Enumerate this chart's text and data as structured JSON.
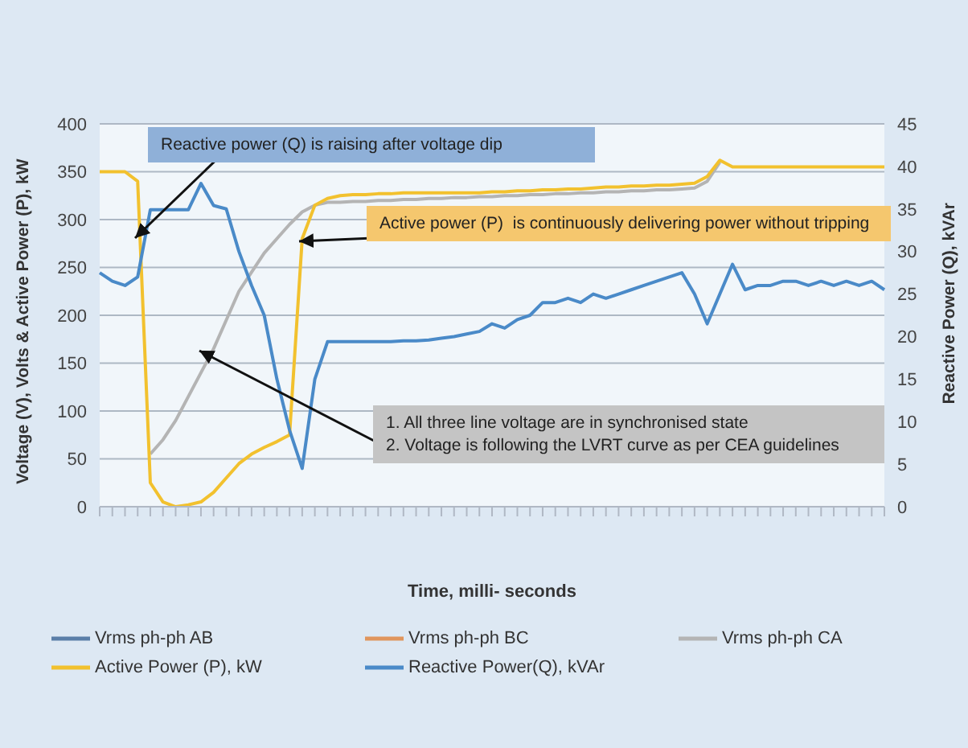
{
  "chart_data": {
    "type": "line",
    "xlabel": "Time, milli- seconds",
    "ylabel": "Voltage (V), Volts & Active Power (P), kW",
    "y2label": "Reactive Power (Q), kVAr",
    "categories": [
      null,
      null,
      null,
      null,
      null,
      null,
      null,
      null,
      null,
      null,
      null,
      null,
      null,
      null,
      null,
      null,
      null,
      null,
      null,
      null,
      null,
      null,
      null,
      null,
      null,
      null,
      null,
      null,
      null,
      null,
      null,
      null,
      null,
      null,
      null,
      null,
      null,
      null,
      null,
      null,
      null,
      null,
      null,
      null,
      null,
      null,
      null,
      null,
      null,
      null,
      null,
      null,
      null,
      null,
      null,
      null,
      null,
      null,
      null,
      null,
      null,
      null,
      null
    ],
    "series": [
      {
        "name": "Vrms ph-ph AB",
        "color": "#5a7ea8",
        "values": [
          null,
          null,
          null,
          null,
          null,
          null,
          null,
          null,
          null,
          null,
          null,
          null,
          null,
          null,
          null,
          null,
          null,
          null,
          null,
          null,
          null,
          null,
          null,
          null,
          null,
          null,
          null,
          null,
          null,
          null,
          null,
          null,
          null,
          null,
          null,
          null,
          null,
          null,
          null,
          null,
          null,
          null,
          null,
          null,
          null,
          null,
          null,
          null,
          null,
          null,
          null,
          null,
          null,
          null,
          null,
          null,
          null,
          null,
          null,
          null,
          null,
          null,
          null
        ]
      },
      {
        "name": "Vrms ph-ph BC",
        "color": "#e0955c",
        "values": [
          null,
          null,
          null,
          null,
          null,
          null,
          null,
          null,
          null,
          null,
          null,
          null,
          null,
          null,
          null,
          null,
          null,
          null,
          null,
          null,
          null,
          null,
          null,
          null,
          null,
          null,
          null,
          null,
          null,
          null,
          null,
          null,
          null,
          null,
          null,
          null,
          null,
          null,
          null,
          null,
          null,
          null,
          null,
          null,
          null,
          null,
          null,
          null,
          null,
          null,
          null,
          null,
          null,
          null,
          null,
          null,
          null,
          null,
          null,
          null,
          null,
          null,
          null
        ]
      },
      {
        "name": "Vrms ph-ph CA",
        "color": "#b4b4b4",
        "values": [
          null,
          null,
          null,
          null,
          55,
          70,
          90,
          115,
          140,
          165,
          195,
          225,
          245,
          265,
          280,
          295,
          308,
          315,
          318,
          318,
          319,
          319,
          320,
          320,
          321,
          321,
          322,
          322,
          323,
          323,
          324,
          324,
          325,
          325,
          326,
          326,
          327,
          327,
          328,
          328,
          329,
          329,
          330,
          330,
          331,
          331,
          332,
          333,
          340,
          360,
          null,
          null,
          null,
          null,
          null,
          null,
          null,
          null,
          null,
          null,
          null,
          null,
          null
        ]
      },
      {
        "name": "Active Power (P), kW",
        "color": "#f2c12e",
        "values": [
          350,
          350,
          350,
          340,
          25,
          5,
          0,
          2,
          5,
          15,
          30,
          45,
          55,
          62,
          68,
          75,
          280,
          315,
          322,
          325,
          326,
          326,
          327,
          327,
          328,
          328,
          328,
          328,
          328,
          328,
          328,
          329,
          329,
          330,
          330,
          331,
          331,
          332,
          332,
          333,
          334,
          334,
          335,
          335,
          336,
          336,
          337,
          338,
          345,
          362,
          355,
          355,
          355,
          355,
          355,
          355,
          355,
          355,
          355,
          355,
          355,
          355,
          355
        ]
      },
      {
        "name": "Reactive Power(Q), kVAr",
        "color": "#4a8ac8",
        "axis": "y2",
        "values": [
          27.5,
          26.5,
          26,
          27,
          34.9,
          34.9,
          34.9,
          34.9,
          38,
          35.4,
          35,
          30,
          26,
          22.5,
          15,
          9,
          4.5,
          15,
          19.4,
          19.4,
          19.4,
          19.4,
          19.4,
          19.4,
          19.5,
          19.5,
          19.6,
          19.8,
          20,
          20.3,
          20.6,
          21.5,
          21,
          22,
          22.5,
          24,
          24,
          24.5,
          24,
          25,
          24.5,
          25,
          25.5,
          26,
          26.5,
          27,
          27.5,
          25,
          21.5,
          25,
          28.5,
          25.5,
          26,
          26,
          26.5,
          26.5,
          26,
          26.5,
          26,
          26.5,
          26,
          26.5,
          25.5
        ]
      }
    ],
    "ylim": [
      0,
      400
    ],
    "yticks": [
      0,
      50,
      100,
      150,
      200,
      250,
      300,
      350,
      400
    ],
    "y2lim": [
      0,
      45
    ],
    "y2ticks": [
      0,
      5,
      10,
      15,
      20,
      25,
      30,
      35,
      40,
      45
    ],
    "grid": "y",
    "legend": "bottom",
    "annotations": [
      "Reactive power (Q) is raising after voltage dip",
      "Active power (P)  is continuously delivering power without tripping",
      "1. All three line voltage are in synchronised state\n2. Voltage is following the LVRT curve as per CEA guidelines"
    ]
  }
}
